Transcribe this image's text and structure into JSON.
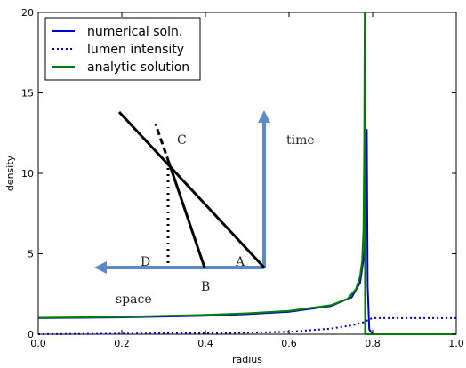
{
  "chart_data": {
    "type": "line",
    "xlabel": "radius",
    "ylabel": "density",
    "xlim": [
      0.0,
      1.0
    ],
    "ylim": [
      0,
      20
    ],
    "x_ticks": [
      "0.0",
      "0.2",
      "0.4",
      "0.6",
      "0.8",
      "1.0"
    ],
    "y_ticks": [
      "0",
      "5",
      "10",
      "15",
      "20"
    ],
    "grid": false,
    "legend_position": "top-left",
    "series": [
      {
        "name": "numerical soln.",
        "color": "#0000cc",
        "style": "solid",
        "x": [
          0.0,
          0.2,
          0.4,
          0.5,
          0.6,
          0.7,
          0.75,
          0.77,
          0.78,
          0.784,
          0.786,
          0.788,
          0.792,
          0.8,
          0.9,
          1.0
        ],
        "y": [
          1.0,
          1.05,
          1.15,
          1.25,
          1.4,
          1.75,
          2.3,
          3.2,
          5.0,
          8.0,
          12.7,
          3.0,
          0.3,
          0.0,
          0.0,
          0.0
        ]
      },
      {
        "name": "lumen intensity",
        "color": "#0000cc",
        "style": "dotted",
        "x": [
          0.0,
          0.3,
          0.5,
          0.6,
          0.7,
          0.75,
          0.78,
          0.79,
          0.8,
          0.85,
          0.9,
          1.0
        ],
        "y": [
          0.0,
          0.05,
          0.1,
          0.15,
          0.35,
          0.55,
          0.75,
          0.9,
          1.0,
          1.0,
          1.0,
          1.0
        ]
      },
      {
        "name": "analytic solution",
        "color": "#008000",
        "style": "solid",
        "x": [
          0.0,
          0.2,
          0.4,
          0.5,
          0.6,
          0.7,
          0.74,
          0.76,
          0.77,
          0.775,
          0.778,
          0.78,
          0.781,
          0.782,
          0.785,
          0.8,
          0.9,
          1.0
        ],
        "y": [
          1.02,
          1.08,
          1.2,
          1.3,
          1.45,
          1.8,
          2.2,
          2.8,
          3.6,
          4.6,
          6.5,
          12.0,
          20.0,
          0.0,
          0.0,
          0.0,
          0.0,
          0.0
        ]
      }
    ],
    "inset": {
      "labels": {
        "time": "time",
        "space": "space",
        "A": "A",
        "B": "B",
        "C": "C",
        "D": "D"
      },
      "colors": {
        "arrow": "#5b8bc6",
        "lines": "#000000"
      }
    }
  }
}
